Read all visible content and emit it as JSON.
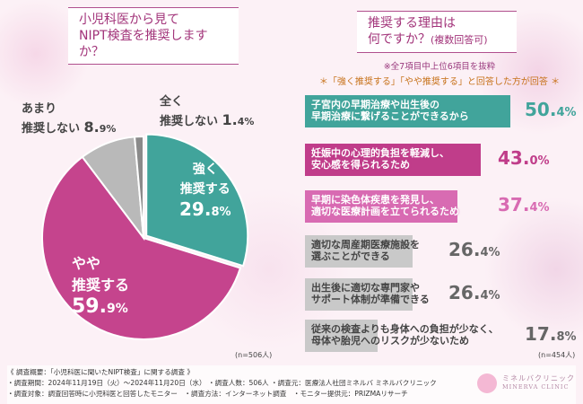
{
  "left": {
    "title_line1": "小児科医から見て",
    "title_line2": "NIPT検査を推奨しますか？",
    "n": "(n=506人)"
  },
  "right": {
    "title_line1": "推奨する理由は",
    "title_line2": "何ですか？",
    "title_sub": "(複数回答可)",
    "note1": "※全7項目中上位6項目を抜粋",
    "note2": "＊「強く推奨する」「やや推奨する」と回答した方が回答 ＊",
    "n": "(n=454人)"
  },
  "chart_data": [
    {
      "type": "pie",
      "slices": [
        {
          "label": "強く推奨する",
          "value": 29.8,
          "color": "#41a49b"
        },
        {
          "label": "やや推奨する",
          "value": 59.9,
          "color": "#c5448d"
        },
        {
          "label": "あまり推奨しない",
          "value": 8.9,
          "color": "#b9b9b9"
        },
        {
          "label": "全く推奨しない",
          "value": 1.4,
          "color": "#8a8a8a"
        }
      ]
    },
    {
      "type": "bar",
      "orientation": "horizontal",
      "unit": "%",
      "categories": [
        "子宮内の早期治療や出生後の早期治療に繋げることができるから",
        "妊娠中の心理的負担を軽減し、安心感を得られるため",
        "早期に染色体疾患を発見し、適切な医療計画を立てられるため",
        "適切な周産期医療施設を選ぶことができる",
        "出生後に適切な専門家やサポート体制が準備できる",
        "従来の検査よりも身体への負担が少なく、母体や胎児へのリスクが少ないため"
      ],
      "lines": [
        [
          "子宮内の早期治療や出生後の",
          "早期治療に繋げることができるから"
        ],
        [
          "妊娠中の心理的負担を軽減し、",
          "安心感を得られるため"
        ],
        [
          "早期に染色体疾患を発見し、",
          "適切な医療計画を立てられるため"
        ],
        [
          "適切な周産期医療施設を",
          "選ぶことができる"
        ],
        [
          "出生後に適切な専門家や",
          "サポート体制が準備できる"
        ],
        [
          "従来の検査よりも身体への負担が少なく、",
          "母体や胎児へのリスクが少ないため"
        ]
      ],
      "values": [
        50.4,
        43.0,
        37.4,
        26.4,
        26.4,
        17.8
      ],
      "labels": [
        [
          "50.",
          "4%"
        ],
        [
          "43.",
          "0%"
        ],
        [
          "37.",
          "4%"
        ],
        [
          "26.",
          "4%"
        ],
        [
          "26.",
          "4%"
        ],
        [
          "17.",
          "8%"
        ]
      ],
      "colors": [
        "#41a49b",
        "#c03d8a",
        "#d86bb2",
        "#c9c9c9",
        "#c9c9c9",
        "#c9c9c9"
      ]
    }
  ],
  "pie_labels": [
    {
      "l1": "強く",
      "l2": "推奨する",
      "v": "29.",
      "p": "8%"
    },
    {
      "l1": "やや",
      "l2": "推奨する",
      "v": "59.",
      "p": "9%"
    },
    {
      "l1": "あまり",
      "l2": "推奨しない",
      "v": "8.",
      "p": "9%"
    },
    {
      "l1": "全く",
      "l2": "推奨しない",
      "v": "1.",
      "p": "4%"
    }
  ],
  "footer": {
    "line1": "《 調査概要：「小児科医に聞いたNIPT検査」に関する調査 》",
    "line2": "・調査期間：2024年11月19日（火）～2024年11月20日（水） ・調査人数：506人 ・調査元：医療法人社団ミネルバ ミネルバクリニック",
    "line3": "・調査対象：調査回答時に小児科医と回答したモニター　・調査方法：インターネット調査　・モニター提供元：PRIZMAリサーチ"
  },
  "logo": {
    "jp": "ミネルバクリニック",
    "en": "MINERVA CLINIC"
  }
}
